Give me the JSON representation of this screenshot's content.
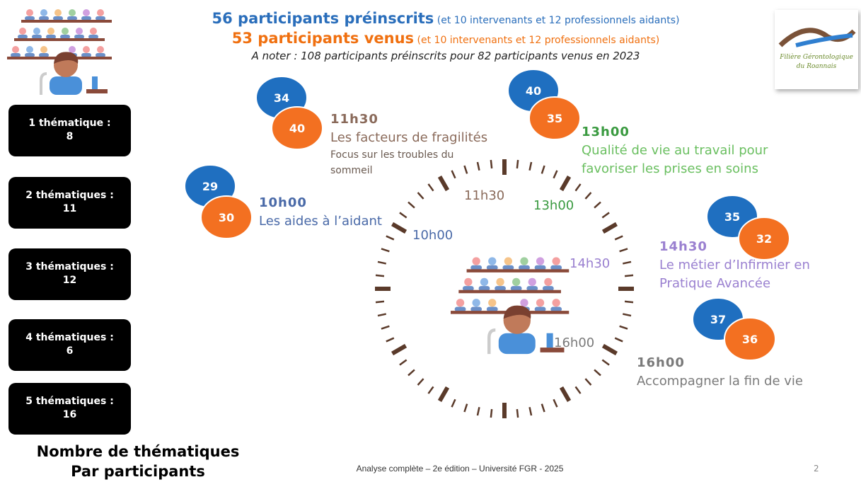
{
  "header": {
    "line1_bold": "56 participants préinscrits",
    "line1_note": "(et 10 intervenants et 12 professionnels aidants)",
    "line2_bold": "53 participants venus",
    "line2_note": "(et 10 intervenants et 12 professionnels aidants)",
    "line3": "A noter : 108 participants préinscrits pour 82 participants venus en 2023"
  },
  "logo": {
    "line1": "Filière Gérontologique",
    "line2": "du Roannais"
  },
  "thematiques": {
    "items": [
      {
        "label": "1 thématique :",
        "value": 8
      },
      {
        "label": "2 thématiques :",
        "value": 11
      },
      {
        "label": "3 thématiques :",
        "value": 12
      },
      {
        "label": "4 thématiques :",
        "value": 6
      },
      {
        "label": "5 thématiques :",
        "value": 16
      }
    ],
    "caption_line1": "Nombre de thématiques",
    "caption_line2": "Par participants"
  },
  "sessions": [
    {
      "time": "11h30",
      "title": "Les facteurs de fragilités",
      "subtitle": "Focus sur les troubles du sommeil",
      "preinscrits": 34,
      "venus": 40
    },
    {
      "time": "13h00",
      "title": "Qualité de vie au travail pour favoriser les prises en soins",
      "preinscrits": 40,
      "venus": 35
    },
    {
      "time": "10h00",
      "title": "Les aides à l’aidant",
      "preinscrits": 29,
      "venus": 30
    },
    {
      "time": "14h30",
      "title": "Le métier d’Infirmier en Pratique Avancée",
      "preinscrits": 35,
      "venus": 32
    },
    {
      "time": "16h00",
      "title": "Accompagner la fin de vie",
      "preinscrits": 37,
      "venus": 36
    }
  ],
  "footer": {
    "text": "Analyse complète – 2e édition – Université FGR - 2025",
    "page": "2"
  }
}
